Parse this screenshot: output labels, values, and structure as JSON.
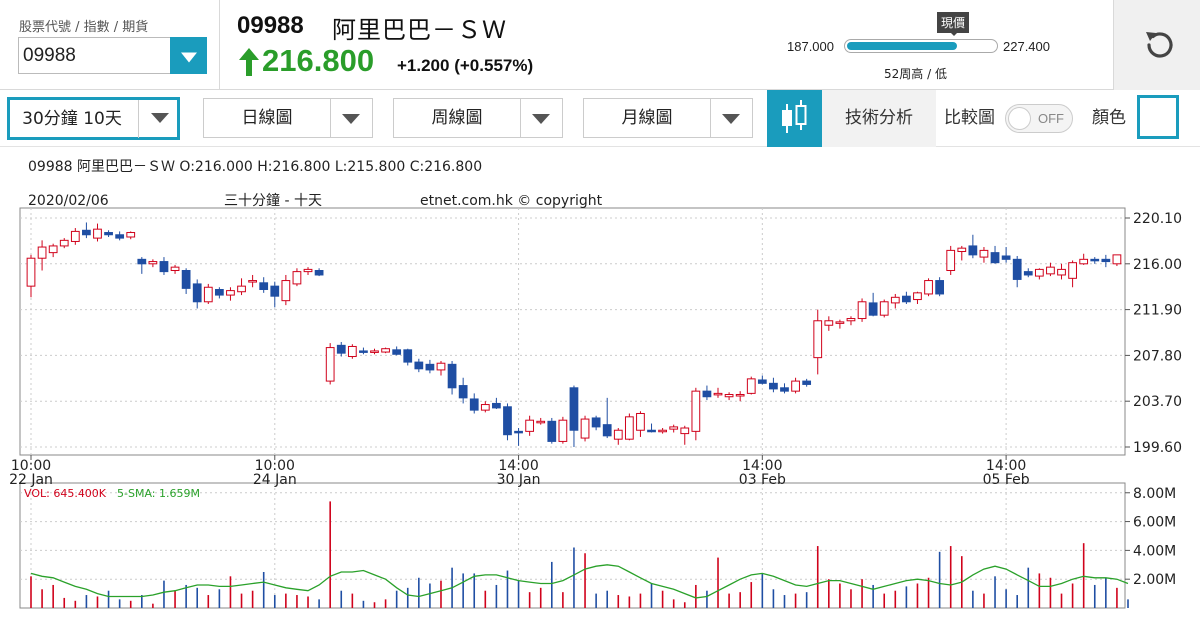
{
  "header": {
    "code_caption": "股票代號 / 指數 / 期貨",
    "code_value": "09988",
    "stock_code": "09988",
    "stock_name": "阿里巴巴－ＳＷ",
    "price": "216.800",
    "change": "+1.200",
    "change_pct": "(+0.557%)",
    "range_label": "現價",
    "range_low": "187.000",
    "range_high": "227.400",
    "range_caption": "52周高 / 低",
    "range_fill_fraction": 0.73
  },
  "toolbar": {
    "period": "30分鐘 10天",
    "daily": "日線圖",
    "weekly": "周線圖",
    "monthly": "月線圖",
    "tech": "技術分析",
    "compare": "比較圖",
    "compare_state": "OFF",
    "color": "顏色"
  },
  "info_line": "09988 阿里巴巴－ＳＷ O:216.000 H:216.800 L:215.800 C:216.800",
  "chart_data": [
    {
      "type": "candlestick",
      "title": "三十分鐘 - 十天",
      "date_label": "2020/02/06",
      "copyright": "etnet.com.hk © copyright",
      "y_ticks": [
        "220.10",
        "216.00",
        "211.90",
        "207.80",
        "203.70",
        "199.60"
      ],
      "y_range": [
        199.6,
        220.1
      ],
      "x_ticks": [
        {
          "time": "10:00",
          "date": "22 Jan"
        },
        {
          "time": "10:00",
          "date": "24 Jan"
        },
        {
          "time": "14:00",
          "date": "30 Jan"
        },
        {
          "time": "14:00",
          "date": "03 Feb"
        },
        {
          "time": "14:00",
          "date": "05 Feb"
        }
      ],
      "colors": {
        "up": "#d0021b",
        "down": "#1f4ea3"
      },
      "candles": [
        {
          "o": 214.0,
          "h": 216.8,
          "l": 213.0,
          "c": 216.5
        },
        {
          "o": 216.5,
          "h": 218.1,
          "l": 215.4,
          "c": 217.5
        },
        {
          "o": 217.0,
          "h": 217.8,
          "l": 216.6,
          "c": 217.6
        },
        {
          "o": 217.6,
          "h": 218.3,
          "l": 217.4,
          "c": 218.1
        },
        {
          "o": 218.0,
          "h": 219.2,
          "l": 217.7,
          "c": 218.9
        },
        {
          "o": 219.0,
          "h": 219.7,
          "l": 218.3,
          "c": 218.6
        },
        {
          "o": 218.3,
          "h": 219.6,
          "l": 218.0,
          "c": 219.1
        },
        {
          "o": 218.8,
          "h": 219.0,
          "l": 218.4,
          "c": 218.6
        },
        {
          "o": 218.6,
          "h": 218.9,
          "l": 218.1,
          "c": 218.3
        },
        {
          "o": 218.4,
          "h": 218.9,
          "l": 218.2,
          "c": 218.8
        },
        {
          "o": 216.4,
          "h": 216.6,
          "l": 215.1,
          "c": 216.0
        },
        {
          "o": 216.0,
          "h": 216.4,
          "l": 215.7,
          "c": 216.2
        },
        {
          "o": 216.2,
          "h": 216.6,
          "l": 215.0,
          "c": 215.3
        },
        {
          "o": 215.4,
          "h": 215.9,
          "l": 215.1,
          "c": 215.7
        },
        {
          "o": 215.4,
          "h": 215.6,
          "l": 213.3,
          "c": 213.8
        },
        {
          "o": 214.2,
          "h": 214.6,
          "l": 212.0,
          "c": 212.6
        },
        {
          "o": 212.6,
          "h": 214.2,
          "l": 212.4,
          "c": 213.9
        },
        {
          "o": 213.7,
          "h": 213.9,
          "l": 212.9,
          "c": 213.2
        },
        {
          "o": 213.2,
          "h": 213.9,
          "l": 212.7,
          "c": 213.6
        },
        {
          "o": 213.5,
          "h": 214.7,
          "l": 213.2,
          "c": 214.0
        },
        {
          "o": 214.4,
          "h": 215.0,
          "l": 213.9,
          "c": 214.5
        },
        {
          "o": 214.3,
          "h": 214.8,
          "l": 213.4,
          "c": 213.7
        },
        {
          "o": 214.0,
          "h": 214.4,
          "l": 212.1,
          "c": 213.1
        },
        {
          "o": 212.7,
          "h": 215.0,
          "l": 212.3,
          "c": 214.5
        },
        {
          "o": 214.2,
          "h": 215.6,
          "l": 214.0,
          "c": 215.3
        },
        {
          "o": 215.3,
          "h": 215.7,
          "l": 215.0,
          "c": 215.5
        },
        {
          "o": 215.4,
          "h": 215.6,
          "l": 214.9,
          "c": 215.0
        },
        {
          "o": 205.5,
          "h": 208.9,
          "l": 205.2,
          "c": 208.5
        },
        {
          "o": 208.7,
          "h": 209.0,
          "l": 207.7,
          "c": 208.0
        },
        {
          "o": 207.7,
          "h": 208.8,
          "l": 207.5,
          "c": 208.6
        },
        {
          "o": 208.2,
          "h": 208.5,
          "l": 207.9,
          "c": 208.1
        },
        {
          "o": 208.1,
          "h": 208.4,
          "l": 207.9,
          "c": 208.2
        },
        {
          "o": 208.1,
          "h": 208.5,
          "l": 208.0,
          "c": 208.4
        },
        {
          "o": 208.3,
          "h": 208.6,
          "l": 207.8,
          "c": 207.9
        },
        {
          "o": 208.3,
          "h": 208.4,
          "l": 206.9,
          "c": 207.2
        },
        {
          "o": 207.2,
          "h": 207.5,
          "l": 206.3,
          "c": 206.6
        },
        {
          "o": 207.0,
          "h": 207.4,
          "l": 206.2,
          "c": 206.5
        },
        {
          "o": 206.5,
          "h": 207.3,
          "l": 206.0,
          "c": 207.1
        },
        {
          "o": 207.0,
          "h": 207.3,
          "l": 204.3,
          "c": 204.9
        },
        {
          "o": 205.1,
          "h": 205.8,
          "l": 203.5,
          "c": 204.0
        },
        {
          "o": 203.9,
          "h": 204.4,
          "l": 202.6,
          "c": 202.9
        },
        {
          "o": 202.9,
          "h": 203.7,
          "l": 202.7,
          "c": 203.4
        },
        {
          "o": 203.5,
          "h": 204.0,
          "l": 203.0,
          "c": 203.1
        },
        {
          "o": 203.2,
          "h": 203.5,
          "l": 200.2,
          "c": 200.7
        },
        {
          "o": 201.0,
          "h": 201.3,
          "l": 199.7,
          "c": 200.9
        },
        {
          "o": 201.0,
          "h": 202.4,
          "l": 200.6,
          "c": 202.0
        },
        {
          "o": 201.9,
          "h": 202.2,
          "l": 201.6,
          "c": 201.9
        },
        {
          "o": 201.9,
          "h": 202.2,
          "l": 199.9,
          "c": 200.1
        },
        {
          "o": 200.1,
          "h": 202.3,
          "l": 199.9,
          "c": 202.0
        },
        {
          "o": 204.9,
          "h": 205.1,
          "l": 199.6,
          "c": 201.1
        },
        {
          "o": 200.4,
          "h": 202.4,
          "l": 200.1,
          "c": 202.1
        },
        {
          "o": 202.2,
          "h": 202.4,
          "l": 201.1,
          "c": 201.4
        },
        {
          "o": 201.6,
          "h": 204.0,
          "l": 200.4,
          "c": 200.6
        },
        {
          "o": 200.3,
          "h": 201.3,
          "l": 199.8,
          "c": 201.1
        },
        {
          "o": 200.3,
          "h": 202.6,
          "l": 200.2,
          "c": 202.3
        },
        {
          "o": 201.1,
          "h": 202.8,
          "l": 200.5,
          "c": 202.6
        },
        {
          "o": 201.1,
          "h": 201.7,
          "l": 200.9,
          "c": 201.0
        },
        {
          "o": 201.0,
          "h": 201.3,
          "l": 200.8,
          "c": 201.1
        },
        {
          "o": 201.2,
          "h": 201.6,
          "l": 200.9,
          "c": 201.4
        },
        {
          "o": 200.8,
          "h": 201.5,
          "l": 199.8,
          "c": 201.3
        },
        {
          "o": 201.0,
          "h": 204.9,
          "l": 200.2,
          "c": 204.6
        },
        {
          "o": 204.6,
          "h": 205.1,
          "l": 203.8,
          "c": 204.1
        },
        {
          "o": 204.4,
          "h": 204.9,
          "l": 204.0,
          "c": 204.4
        },
        {
          "o": 204.1,
          "h": 204.5,
          "l": 203.8,
          "c": 204.3
        },
        {
          "o": 204.2,
          "h": 204.6,
          "l": 203.7,
          "c": 204.3
        },
        {
          "o": 204.4,
          "h": 205.9,
          "l": 204.3,
          "c": 205.7
        },
        {
          "o": 205.6,
          "h": 206.0,
          "l": 205.2,
          "c": 205.3
        },
        {
          "o": 205.3,
          "h": 205.8,
          "l": 204.5,
          "c": 204.8
        },
        {
          "o": 204.9,
          "h": 205.3,
          "l": 204.4,
          "c": 204.6
        },
        {
          "o": 204.6,
          "h": 205.8,
          "l": 204.4,
          "c": 205.5
        },
        {
          "o": 205.5,
          "h": 205.7,
          "l": 205.0,
          "c": 205.2
        },
        {
          "o": 207.6,
          "h": 211.9,
          "l": 206.1,
          "c": 210.9
        },
        {
          "o": 210.5,
          "h": 211.3,
          "l": 210.0,
          "c": 210.9
        },
        {
          "o": 210.7,
          "h": 211.0,
          "l": 210.2,
          "c": 210.8
        },
        {
          "o": 210.9,
          "h": 211.3,
          "l": 210.5,
          "c": 211.1
        },
        {
          "o": 211.1,
          "h": 212.9,
          "l": 210.8,
          "c": 212.6
        },
        {
          "o": 212.5,
          "h": 213.4,
          "l": 211.3,
          "c": 211.4
        },
        {
          "o": 211.4,
          "h": 212.8,
          "l": 211.2,
          "c": 212.6
        },
        {
          "o": 212.5,
          "h": 213.3,
          "l": 212.0,
          "c": 213.0
        },
        {
          "o": 213.1,
          "h": 213.5,
          "l": 212.4,
          "c": 212.6
        },
        {
          "o": 212.8,
          "h": 213.5,
          "l": 212.4,
          "c": 213.4
        },
        {
          "o": 213.3,
          "h": 214.7,
          "l": 213.1,
          "c": 214.5
        },
        {
          "o": 214.5,
          "h": 214.8,
          "l": 213.1,
          "c": 213.3
        },
        {
          "o": 215.4,
          "h": 217.6,
          "l": 215.0,
          "c": 217.2
        },
        {
          "o": 217.1,
          "h": 217.6,
          "l": 216.3,
          "c": 217.4
        },
        {
          "o": 217.6,
          "h": 218.6,
          "l": 216.5,
          "c": 216.8
        },
        {
          "o": 216.6,
          "h": 217.5,
          "l": 216.1,
          "c": 217.2
        },
        {
          "o": 217.0,
          "h": 217.6,
          "l": 216.0,
          "c": 216.1
        },
        {
          "o": 216.7,
          "h": 217.5,
          "l": 216.1,
          "c": 216.4
        },
        {
          "o": 216.4,
          "h": 216.7,
          "l": 213.9,
          "c": 214.6
        },
        {
          "o": 215.3,
          "h": 215.6,
          "l": 214.8,
          "c": 215.0
        },
        {
          "o": 214.9,
          "h": 215.6,
          "l": 214.6,
          "c": 215.5
        },
        {
          "o": 215.1,
          "h": 216.1,
          "l": 214.9,
          "c": 215.7
        },
        {
          "o": 215.0,
          "h": 216.0,
          "l": 214.6,
          "c": 215.5
        },
        {
          "o": 214.7,
          "h": 216.3,
          "l": 213.9,
          "c": 216.1
        },
        {
          "o": 216.0,
          "h": 216.9,
          "l": 215.9,
          "c": 216.4
        },
        {
          "o": 216.4,
          "h": 216.6,
          "l": 216.0,
          "c": 216.3
        },
        {
          "o": 216.4,
          "h": 216.8,
          "l": 215.7,
          "c": 216.2
        },
        {
          "o": 216.0,
          "h": 216.8,
          "l": 215.8,
          "c": 216.8
        }
      ]
    },
    {
      "type": "bar",
      "label_vol": "VOL: 645.400K",
      "label_sma": "5-SMA: 1.659M",
      "y_ticks": [
        "8.00M",
        "6.00M",
        "4.00M",
        "2.00M"
      ],
      "y_max_m": 8.4,
      "colors": {
        "up": "#d0021b",
        "down": "#1f4ea3",
        "sma": "#2aa12a"
      },
      "volumes_m": [
        2.2,
        1.3,
        1.6,
        0.7,
        0.5,
        0.9,
        0.8,
        1.2,
        0.6,
        0.5,
        0.9,
        0.3,
        1.9,
        1.2,
        1.6,
        1.4,
        0.9,
        1.3,
        2.2,
        1.0,
        1.2,
        2.5,
        0.9,
        1.0,
        0.9,
        0.8,
        0.6,
        7.4,
        1.2,
        1.0,
        0.5,
        0.4,
        0.6,
        1.2,
        1.4,
        2.1,
        1.7,
        1.9,
        2.8,
        2.4,
        2.4,
        1.2,
        1.6,
        2.6,
        1.9,
        1.1,
        1.4,
        3.2,
        1.1,
        4.2,
        3.8,
        1.0,
        1.2,
        0.9,
        0.8,
        1.0,
        1.7,
        1.2,
        0.6,
        0.4,
        1.6,
        1.2,
        3.5,
        1.0,
        1.1,
        1.8,
        2.4,
        1.3,
        0.9,
        1.0,
        1.1,
        4.3,
        2.0,
        1.7,
        1.3,
        2.0,
        1.6,
        1.0,
        1.2,
        1.5,
        1.7,
        2.1,
        3.9,
        4.3,
        3.6,
        1.2,
        1.0,
        2.2,
        1.3,
        0.9,
        2.8,
        2.4,
        2.1,
        1.0,
        1.7,
        4.5,
        1.6,
        2.1,
        1.4,
        0.6
      ],
      "sma_m": [
        2.4,
        2.2,
        2.1,
        1.8,
        1.5,
        1.3,
        1.0,
        0.8,
        0.8,
        0.8,
        0.8,
        0.9,
        1.1,
        1.2,
        1.4,
        1.6,
        1.6,
        1.5,
        1.5,
        1.6,
        1.7,
        1.8,
        1.6,
        1.4,
        1.3,
        1.2,
        1.6,
        2.2,
        2.5,
        2.5,
        2.6,
        2.3,
        2.0,
        1.4,
        0.9,
        0.8,
        1.0,
        1.2,
        1.4,
        1.8,
        2.2,
        2.3,
        2.3,
        2.1,
        1.9,
        1.8,
        1.7,
        1.7,
        1.9,
        2.3,
        2.7,
        2.9,
        3.0,
        2.9,
        2.5,
        2.1,
        1.7,
        1.5,
        1.3,
        1.0,
        0.7,
        0.8,
        1.2,
        1.6,
        2.0,
        2.3,
        2.4,
        2.2,
        1.9,
        1.6,
        1.5,
        1.7,
        1.9,
        1.9,
        1.7,
        1.5,
        1.3,
        1.5,
        1.7,
        1.9,
        2.0,
        1.9,
        1.7,
        1.6,
        1.8,
        2.3,
        2.7,
        2.9,
        2.7,
        2.3,
        1.9,
        1.5,
        1.5,
        1.7,
        2.0,
        2.2,
        2.1,
        2.1,
        2.0,
        1.7
      ]
    }
  ]
}
